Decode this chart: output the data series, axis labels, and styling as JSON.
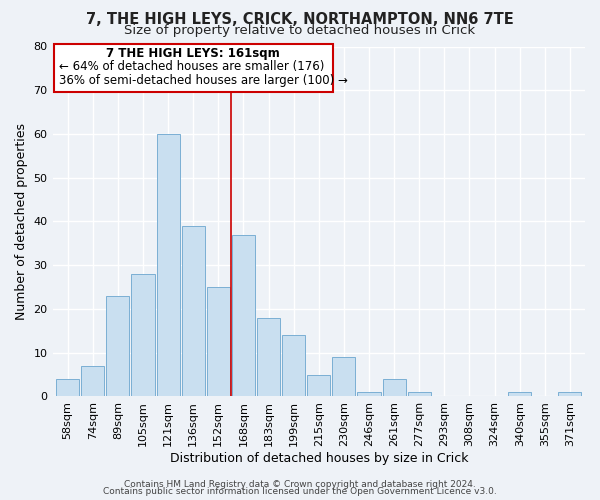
{
  "title": "7, THE HIGH LEYS, CRICK, NORTHAMPTON, NN6 7TE",
  "subtitle": "Size of property relative to detached houses in Crick",
  "xlabel": "Distribution of detached houses by size in Crick",
  "ylabel": "Number of detached properties",
  "bar_color": "#c9dff0",
  "bar_edge_color": "#7aafd4",
  "categories": [
    "58sqm",
    "74sqm",
    "89sqm",
    "105sqm",
    "121sqm",
    "136sqm",
    "152sqm",
    "168sqm",
    "183sqm",
    "199sqm",
    "215sqm",
    "230sqm",
    "246sqm",
    "261sqm",
    "277sqm",
    "293sqm",
    "308sqm",
    "324sqm",
    "340sqm",
    "355sqm",
    "371sqm"
  ],
  "values": [
    4,
    7,
    23,
    28,
    60,
    39,
    25,
    37,
    18,
    14,
    5,
    9,
    1,
    4,
    1,
    0,
    0,
    0,
    1,
    0,
    1
  ],
  "ylim": [
    0,
    80
  ],
  "yticks": [
    0,
    10,
    20,
    30,
    40,
    50,
    60,
    70,
    80
  ],
  "ann_line1": "7 THE HIGH LEYS: 161sqm",
  "ann_line2": "← 64% of detached houses are smaller (176)",
  "ann_line3": "36% of semi-detached houses are larger (100) →",
  "annotation_box_color": "#ffffff",
  "annotation_box_edge_color": "#cc0000",
  "property_line_bar_index": 6.5,
  "footer_line1": "Contains HM Land Registry data © Crown copyright and database right 2024.",
  "footer_line2": "Contains public sector information licensed under the Open Government Licence v3.0.",
  "background_color": "#eef2f7",
  "grid_color": "#ffffff",
  "title_fontsize": 10.5,
  "subtitle_fontsize": 9.5,
  "axis_label_fontsize": 9,
  "tick_fontsize": 8,
  "annotation_fontsize": 8.5,
  "footer_fontsize": 6.5
}
